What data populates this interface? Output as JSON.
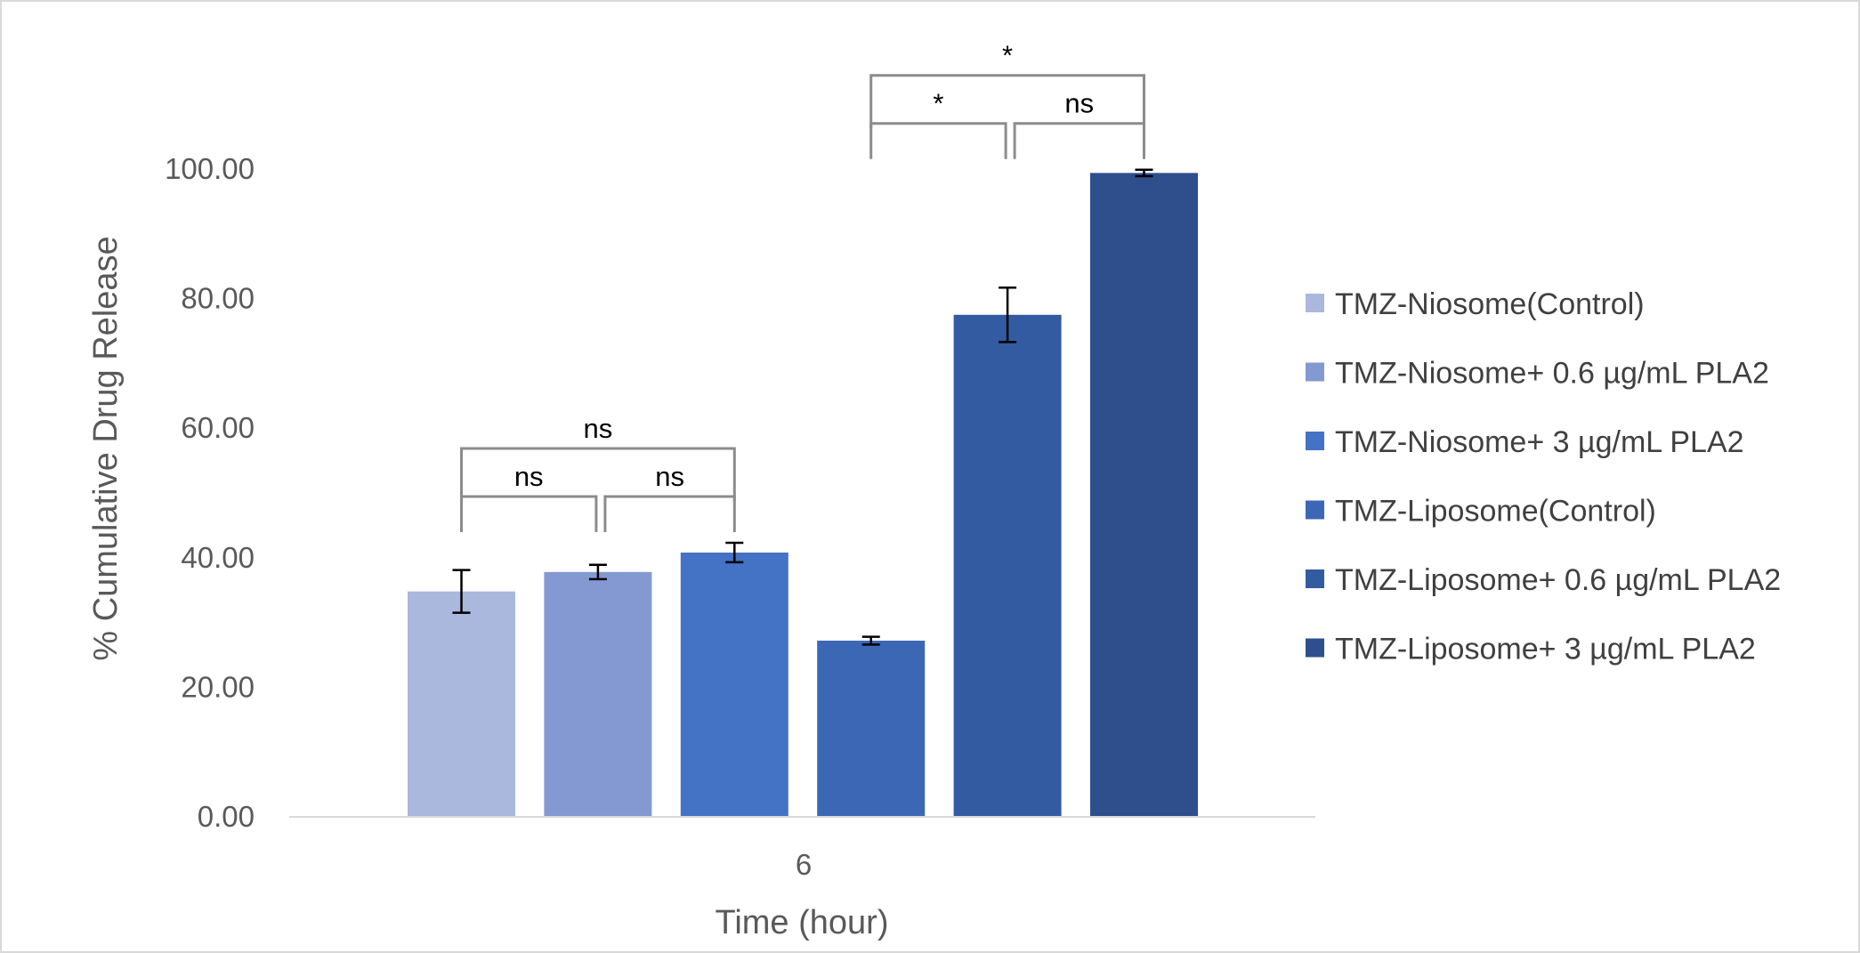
{
  "chart_data": {
    "type": "bar",
    "categories": [
      "6"
    ],
    "series": [
      {
        "name": "TMZ-Niosome(Control)",
        "values": [
          34.8
        ],
        "error": [
          3.3
        ],
        "color": "#a9b8dc"
      },
      {
        "name": "TMZ-Niosome+ 0.6 µg/mL PLA2",
        "values": [
          37.8
        ],
        "error": [
          1.1
        ],
        "color": "#8499d2"
      },
      {
        "name": "TMZ-Niosome+ 3 µg/mL PLA2",
        "values": [
          40.8
        ],
        "error": [
          1.5
        ],
        "color": "#4472c4"
      },
      {
        "name": "TMZ-Liposome(Control)",
        "values": [
          27.2
        ],
        "error": [
          0.6
        ],
        "color": "#3c67b4"
      },
      {
        "name": "TMZ-Liposome+ 0.6 µg/mL PLA2",
        "values": [
          77.5
        ],
        "error": [
          4.2
        ],
        "color": "#335ba1"
      },
      {
        "name": "TMZ-Liposome+ 3 µg/mL PLA2",
        "values": [
          99.4
        ],
        "error": [
          0.5
        ],
        "color": "#2e4f8c"
      }
    ],
    "xlabel": "Time (hour)",
    "ylabel": "% Cumulative Drug Release",
    "ylim": [
      0,
      100
    ],
    "yticks": [
      "0.00",
      "20.00",
      "40.00",
      "60.00",
      "80.00",
      "100.00"
    ],
    "grid": false,
    "legend_position": "right",
    "annotations": [
      {
        "from": 0,
        "to": 1,
        "label": "ns",
        "level": 1
      },
      {
        "from": 1,
        "to": 2,
        "label": "ns",
        "level": 1
      },
      {
        "from": 0,
        "to": 2,
        "label": "ns",
        "level": 2
      },
      {
        "from": 4,
        "to": 5,
        "label": "ns",
        "level": 1
      },
      {
        "from": 3,
        "to": 4,
        "label": "*",
        "level": 1
      },
      {
        "from": 3,
        "to": 5,
        "label": "*",
        "level": 2
      }
    ]
  }
}
